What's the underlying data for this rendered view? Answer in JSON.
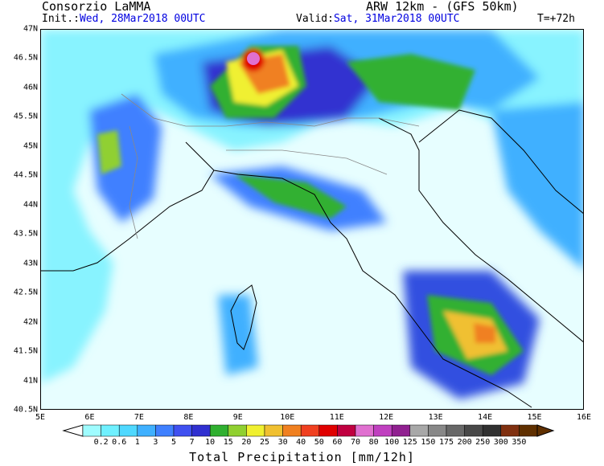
{
  "header": {
    "org": "Consorzio LaMMA",
    "model": "ARW 12km - (GFS 50km)",
    "init_label": "Init.:",
    "init_value": "Wed, 28Mar2018 00UTC",
    "valid_label": "Valid:",
    "valid_value": "Sat, 31Mar2018 00UTC",
    "lead": "T=+72h"
  },
  "axes": {
    "lat_labels": [
      "47N",
      "46.5N",
      "46N",
      "45.5N",
      "45N",
      "44.5N",
      "44N",
      "43.5N",
      "43N",
      "42.5N",
      "42N",
      "41.5N",
      "41N",
      "40.5N"
    ],
    "lon_labels": [
      "5E",
      "6E",
      "7E",
      "8E",
      "9E",
      "10E",
      "11E",
      "12E",
      "13E",
      "14E",
      "15E",
      "16E"
    ],
    "lat_range": [
      40.5,
      47
    ],
    "lon_range": [
      5,
      16
    ]
  },
  "colorbar": {
    "title": "Total Precipitation [mm/12h]",
    "labels": [
      "0.2",
      "0.6",
      "1",
      "3",
      "5",
      "7",
      "10",
      "15",
      "20",
      "25",
      "30",
      "40",
      "50",
      "60",
      "70",
      "80",
      "100",
      "125",
      "150",
      "175",
      "200",
      "250",
      "300",
      "350"
    ],
    "colors": [
      "#9ffcff",
      "#6ff0ff",
      "#4fd8ff",
      "#3fb0ff",
      "#3f80ff",
      "#3f50f0",
      "#3030d0",
      "#30b030",
      "#90d030",
      "#f0f030",
      "#f0c030",
      "#f08020",
      "#f04020",
      "#e00000",
      "#c00040",
      "#e070d0",
      "#c040c0",
      "#902090",
      "#a8a8a8",
      "#888888",
      "#686868",
      "#484848",
      "#303030",
      "#803010",
      "#603000"
    ]
  },
  "colors": {
    "header_blue": "#0000e0"
  }
}
